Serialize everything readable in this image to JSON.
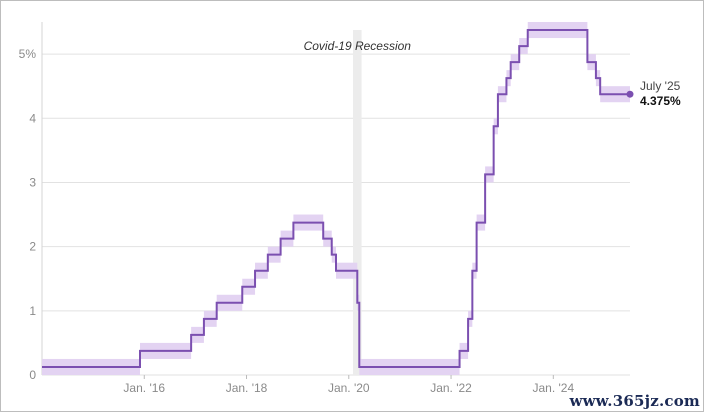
{
  "chart_data": {
    "type": "line",
    "title": "",
    "xlabel": "",
    "ylabel": "",
    "ylim": [
      0,
      5.5
    ],
    "xlim": [
      "2014-01",
      "2025-07"
    ],
    "y_ticks": [
      0,
      1,
      2,
      3,
      4,
      5
    ],
    "y_tick_labels": [
      "0",
      "1",
      "2",
      "3",
      "4",
      "5%"
    ],
    "x_ticks": [
      "2016-01",
      "2018-01",
      "2020-01",
      "2022-01",
      "2024-01"
    ],
    "x_tick_labels": [
      "Jan. '16",
      "Jan. '18",
      "Jan. '20",
      "Jan. '22",
      "Jan. '24"
    ],
    "grid": "horizontal",
    "line_color": "#7b4fb0",
    "band_color": "#e3d3f2",
    "recession_color": "#ececec",
    "series": [
      {
        "step": "after",
        "points": [
          {
            "x": "2014-01",
            "y": 0.125,
            "lo": 0.0,
            "hi": 0.25
          },
          {
            "x": "2015-12",
            "y": 0.375,
            "lo": 0.25,
            "hi": 0.5
          },
          {
            "x": "2016-12",
            "y": 0.625,
            "lo": 0.5,
            "hi": 0.75
          },
          {
            "x": "2017-03",
            "y": 0.875,
            "lo": 0.75,
            "hi": 1.0
          },
          {
            "x": "2017-06",
            "y": 1.125,
            "lo": 1.0,
            "hi": 1.25
          },
          {
            "x": "2017-12",
            "y": 1.375,
            "lo": 1.25,
            "hi": 1.5
          },
          {
            "x": "2018-03",
            "y": 1.625,
            "lo": 1.5,
            "hi": 1.75
          },
          {
            "x": "2018-06",
            "y": 1.875,
            "lo": 1.75,
            "hi": 2.0
          },
          {
            "x": "2018-09",
            "y": 2.125,
            "lo": 2.0,
            "hi": 2.25
          },
          {
            "x": "2018-12",
            "y": 2.375,
            "lo": 2.25,
            "hi": 2.5
          },
          {
            "x": "2019-07",
            "y": 2.125,
            "lo": 2.0,
            "hi": 2.25
          },
          {
            "x": "2019-09",
            "y": 1.875,
            "lo": 1.75,
            "hi": 2.0
          },
          {
            "x": "2019-10",
            "y": 1.625,
            "lo": 1.5,
            "hi": 1.75
          },
          {
            "x": "2020-03",
            "y": 1.125,
            "lo": 1.0,
            "hi": 1.25
          },
          {
            "x": "2020-03-15",
            "y": 0.125,
            "lo": 0.0,
            "hi": 0.25
          },
          {
            "x": "2022-03",
            "y": 0.375,
            "lo": 0.25,
            "hi": 0.5
          },
          {
            "x": "2022-05",
            "y": 0.875,
            "lo": 0.75,
            "hi": 1.0
          },
          {
            "x": "2022-06",
            "y": 1.625,
            "lo": 1.5,
            "hi": 1.75
          },
          {
            "x": "2022-07",
            "y": 2.375,
            "lo": 2.25,
            "hi": 2.5
          },
          {
            "x": "2022-09",
            "y": 3.125,
            "lo": 3.0,
            "hi": 3.25
          },
          {
            "x": "2022-11",
            "y": 3.875,
            "lo": 3.75,
            "hi": 4.0
          },
          {
            "x": "2022-12",
            "y": 4.375,
            "lo": 4.25,
            "hi": 4.5
          },
          {
            "x": "2023-02",
            "y": 4.625,
            "lo": 4.5,
            "hi": 4.75
          },
          {
            "x": "2023-03",
            "y": 4.875,
            "lo": 4.75,
            "hi": 5.0
          },
          {
            "x": "2023-05",
            "y": 5.125,
            "lo": 5.0,
            "hi": 5.25
          },
          {
            "x": "2023-07",
            "y": 5.375,
            "lo": 5.25,
            "hi": 5.5
          },
          {
            "x": "2024-09",
            "y": 4.875,
            "lo": 4.75,
            "hi": 5.0
          },
          {
            "x": "2024-11",
            "y": 4.625,
            "lo": 4.5,
            "hi": 4.75
          },
          {
            "x": "2024-12",
            "y": 4.375,
            "lo": 4.25,
            "hi": 4.5
          },
          {
            "x": "2025-07",
            "y": 4.375,
            "lo": 4.25,
            "hi": 4.5
          }
        ]
      }
    ],
    "recession": {
      "start": "2020-02",
      "end": "2020-04",
      "label": "Covid-19 Recession"
    },
    "end_label": {
      "date": "July '25",
      "value": "4.375%"
    }
  },
  "watermark": "www.365jz.com"
}
